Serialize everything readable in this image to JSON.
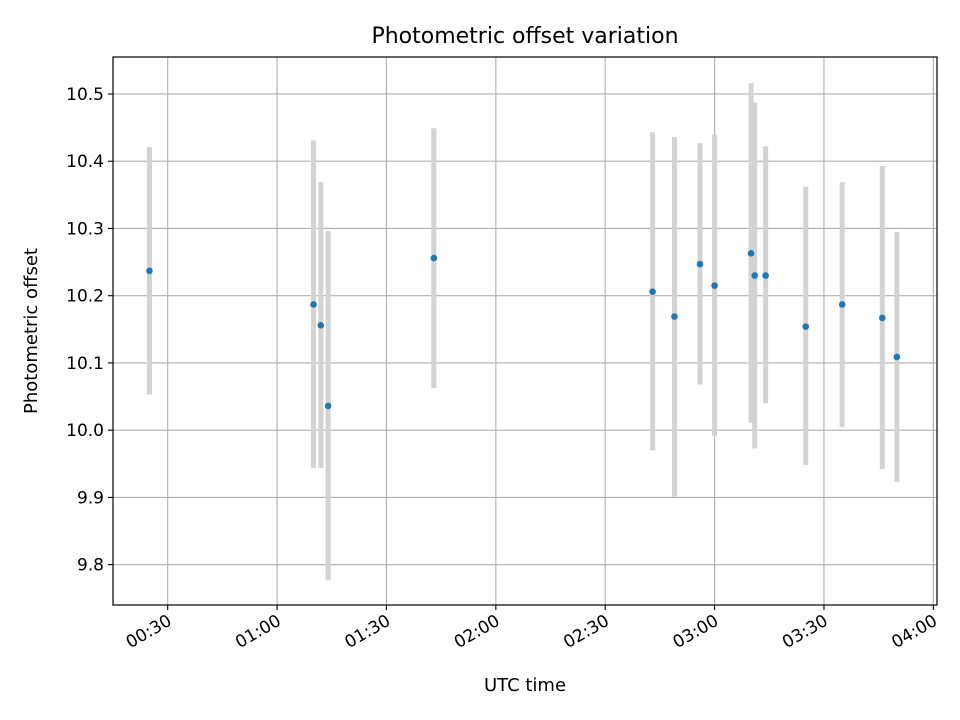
{
  "chart_data": {
    "type": "scatter",
    "title": "Photometric offset variation",
    "xlabel": "UTC time",
    "ylabel": "Photometric offset",
    "x_ticks": [
      "00:30",
      "01:00",
      "01:30",
      "02:00",
      "02:30",
      "03:00",
      "03:30",
      "04:00"
    ],
    "y_ticks": [
      "9.8",
      "9.9",
      "10.0",
      "10.1",
      "10.2",
      "10.3",
      "10.4",
      "10.5"
    ],
    "xlim": [
      "00:15",
      "04:01"
    ],
    "ylim": [
      9.74,
      10.555
    ],
    "grid": true,
    "point_color": "#1f77b4",
    "errorbar_color": "#d3d3d3",
    "points": [
      {
        "time": "00:25",
        "value": 10.237,
        "low": 10.053,
        "high": 10.421
      },
      {
        "time": "01:10",
        "value": 10.187,
        "low": 9.944,
        "high": 10.431
      },
      {
        "time": "01:12",
        "value": 10.156,
        "low": 9.944,
        "high": 10.369
      },
      {
        "time": "01:14",
        "value": 10.036,
        "low": 9.777,
        "high": 10.296
      },
      {
        "time": "01:43",
        "value": 10.256,
        "low": 10.063,
        "high": 10.449
      },
      {
        "time": "02:43",
        "value": 10.206,
        "low": 9.97,
        "high": 10.443
      },
      {
        "time": "02:49",
        "value": 10.169,
        "low": 9.901,
        "high": 10.436
      },
      {
        "time": "02:56",
        "value": 10.247,
        "low": 10.068,
        "high": 10.427
      },
      {
        "time": "03:00",
        "value": 10.215,
        "low": 9.991,
        "high": 10.44
      },
      {
        "time": "03:10",
        "value": 10.263,
        "low": 10.011,
        "high": 10.516
      },
      {
        "time": "03:11",
        "value": 10.23,
        "low": 9.973,
        "high": 10.487
      },
      {
        "time": "03:14",
        "value": 10.23,
        "low": 10.04,
        "high": 10.422
      },
      {
        "time": "03:25",
        "value": 10.154,
        "low": 9.948,
        "high": 10.362
      },
      {
        "time": "03:35",
        "value": 10.187,
        "low": 10.005,
        "high": 10.369
      },
      {
        "time": "03:46",
        "value": 10.167,
        "low": 9.942,
        "high": 10.393
      },
      {
        "time": "03:50",
        "value": 10.109,
        "low": 9.923,
        "high": 10.295
      }
    ]
  }
}
